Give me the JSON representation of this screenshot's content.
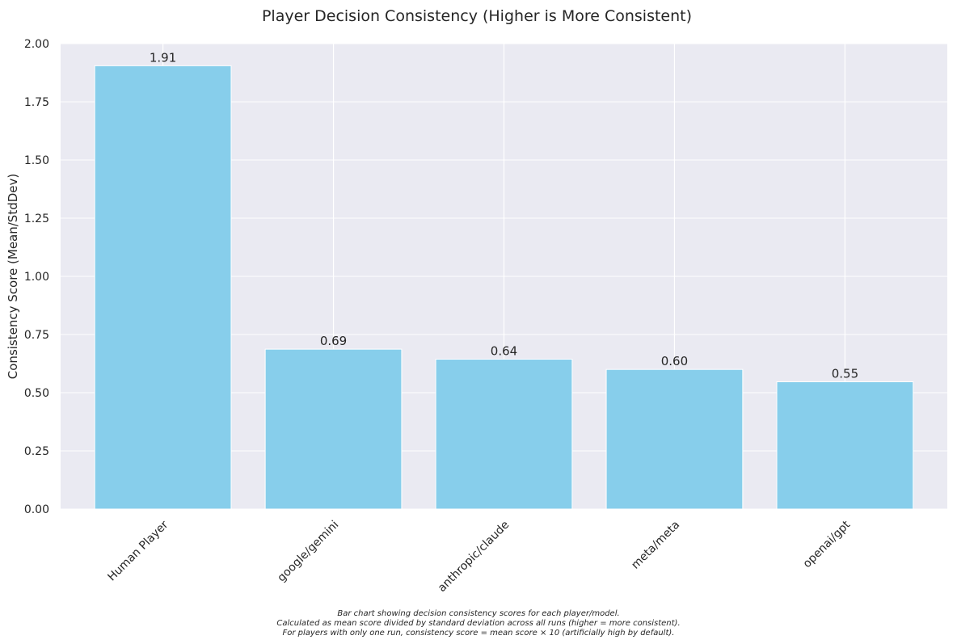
{
  "chart_data": {
    "type": "bar",
    "title": "Player Decision Consistency (Higher is More Consistent)",
    "xlabel": "",
    "ylabel": "Consistency Score (Mean/StdDev)",
    "categories": [
      "Human Player",
      "google/gemini",
      "anthropic/claude",
      "meta/meta",
      "openai/gpt"
    ],
    "values": [
      1.905,
      0.687,
      0.644,
      0.6,
      0.547
    ],
    "value_labels": [
      "1.91",
      "0.69",
      "0.64",
      "0.60",
      "0.55"
    ],
    "ylim": [
      0,
      2.0
    ],
    "yticks": [
      0.0,
      0.25,
      0.5,
      0.75,
      1.0,
      1.25,
      1.5,
      1.75,
      2.0
    ],
    "ytick_labels": [
      "0.00",
      "0.25",
      "0.50",
      "0.75",
      "1.00",
      "1.25",
      "1.50",
      "1.75",
      "2.00"
    ],
    "grid": true,
    "bar_color": "#87CEEB",
    "background_color": "#EAEAF2",
    "grid_color": "#FFFFFF",
    "footnote": [
      "Bar chart showing decision consistency scores for each player/model.",
      "Calculated as mean score divided by standard deviation across all runs (higher = more consistent).",
      "For players with only one run, consistency score = mean score × 10 (artificially high by default)."
    ]
  }
}
